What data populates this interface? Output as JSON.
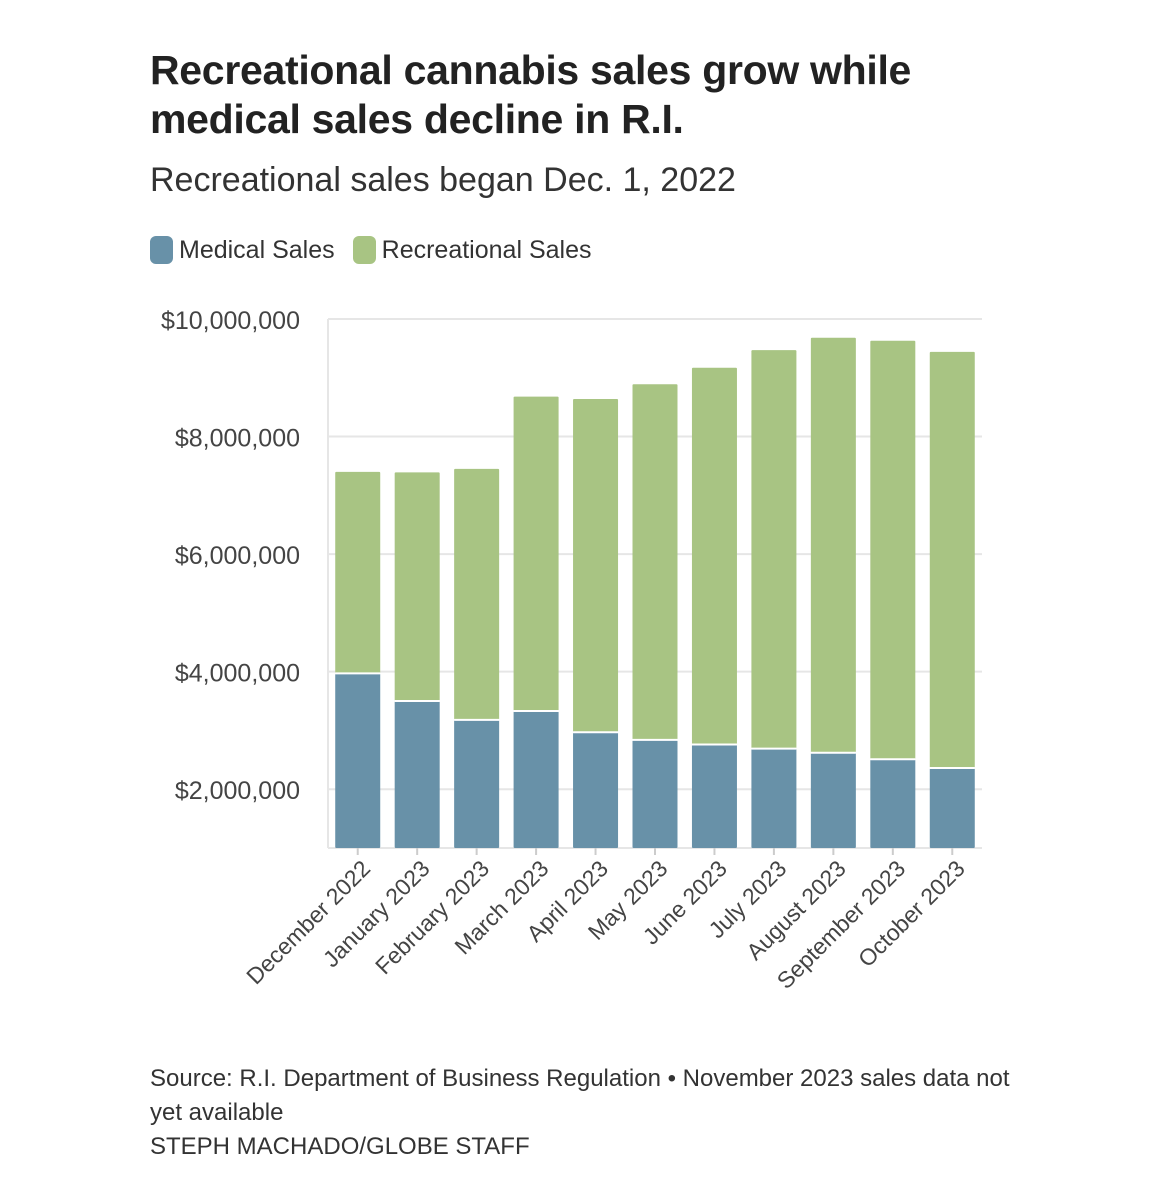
{
  "title": "Recreational cannabis sales grow while medical sales decline in R.I.",
  "subtitle": "Recreational sales began Dec. 1, 2022",
  "legend": {
    "medical": "Medical Sales",
    "recreational": "Recreational Sales"
  },
  "footer": {
    "source": "Source: R.I. Department of Business Regulation • November 2023 sales data not yet available",
    "credit": "STEPH MACHADO/GLOBE STAFF"
  },
  "colors": {
    "medical": "#6891a8",
    "recreational": "#a8c483",
    "grid": "#e6e6e6",
    "text": "#333333"
  },
  "chart_data": {
    "type": "bar",
    "stacked": true,
    "categories": [
      "December 2022",
      "January 2023",
      "February 2023",
      "March 2023",
      "April 2023",
      "May 2023",
      "June 2023",
      "July 2023",
      "August 2023",
      "September 2023",
      "October 2023"
    ],
    "series": [
      {
        "name": "Medical Sales",
        "values": [
          3970000,
          3500000,
          3180000,
          3330000,
          2970000,
          2840000,
          2760000,
          2690000,
          2620000,
          2510000,
          2360000
        ]
      },
      {
        "name": "Recreational Sales",
        "values": [
          3430000,
          3890000,
          4270000,
          5350000,
          5670000,
          6050000,
          6410000,
          6780000,
          7060000,
          7120000,
          7080000
        ]
      }
    ],
    "totals": [
      7400000,
      7390000,
      7450000,
      8680000,
      8640000,
      8890000,
      9170000,
      9470000,
      9680000,
      9630000,
      9440000
    ],
    "yticks": [
      2000000,
      4000000,
      6000000,
      8000000,
      10000000
    ],
    "ytick_labels": [
      "$2,000,000",
      "$4,000,000",
      "$6,000,000",
      "$8,000,000",
      "$10,000,000"
    ],
    "ylim": [
      1000000,
      10000000
    ],
    "xlabel": "",
    "ylabel": "",
    "grid": true,
    "legend_position": "top-left"
  }
}
